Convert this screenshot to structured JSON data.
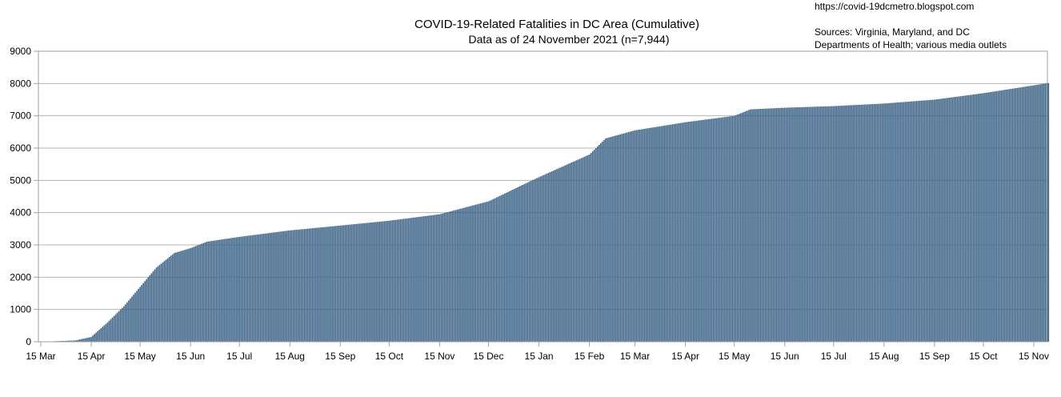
{
  "chart_data": {
    "type": "bar",
    "title": "COVID-19-Related Fatalities in DC Area (Cumulative)",
    "subtitle": "Data as of 24 November 2021 (n=7,944)",
    "xlabel": "",
    "ylabel": "",
    "ylim": [
      0,
      9000
    ],
    "yticks": [
      "0",
      "1000",
      "2000",
      "3000",
      "4000",
      "5000",
      "6000",
      "7000",
      "8000",
      "9000"
    ],
    "xticks": [
      "15 Mar",
      "15 Apr",
      "15 May",
      "15 Jun",
      "15 Jul",
      "15 Aug",
      "15 Sep",
      "15 Oct",
      "15 Nov",
      "15 Dec",
      "15 Jan",
      "15 Feb",
      "15 Mar",
      "15 Apr",
      "15 May",
      "15 Jun",
      "15 Jul",
      "15 Aug",
      "15 Sep",
      "15 Oct",
      "15 Nov"
    ],
    "grid": true,
    "bar_color": "#3a6185",
    "series": [
      {
        "values_at_month_15": [
          0,
          150,
          1700,
          2900,
          3250,
          3450,
          3600,
          3750,
          3950,
          4350,
          5100,
          5800,
          6550,
          6800,
          7000,
          7250,
          7300,
          7380,
          7500,
          7700,
          7944
        ],
        "intermediate_points": [
          {
            "x": "2020-04-05",
            "y": 40
          },
          {
            "x": "2020-04-25",
            "y": 600
          },
          {
            "x": "2020-05-05",
            "y": 1100
          },
          {
            "x": "2020-05-25",
            "y": 2300
          },
          {
            "x": "2020-06-05",
            "y": 2750
          },
          {
            "x": "2020-06-25",
            "y": 3100
          },
          {
            "x": "2021-02-25",
            "y": 6300
          },
          {
            "x": "2021-05-25",
            "y": 7200
          }
        ]
      }
    ]
  },
  "annotations": {
    "url": "https://covid-19dcmetro.blogspot.com",
    "sources_line1": "Sources: Virginia, Maryland, and DC",
    "sources_line2": "Departments of Health; various media outlets"
  }
}
